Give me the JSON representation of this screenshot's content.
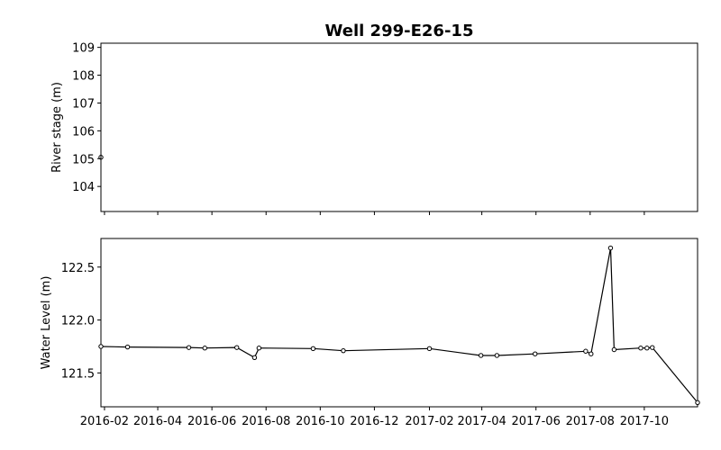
{
  "chart_data": [
    {
      "type": "line",
      "title": "Well 299-E26-15",
      "xlabel": "",
      "ylabel": "River stage (m)",
      "ylim": [
        103.1,
        109.15
      ],
      "yticks": [
        104,
        105,
        106,
        107,
        108,
        109
      ],
      "grid": false,
      "series": [
        {
          "x": [
            "2016-01-28"
          ],
          "y": [
            105.05
          ]
        }
      ]
    },
    {
      "type": "line",
      "xlabel": "",
      "ylabel": "Water Level (m)",
      "ylim": [
        121.18,
        122.77
      ],
      "yticks": [
        121.5,
        122.0,
        122.5
      ],
      "xlim": [
        "2016-01-28",
        "2017-11-30"
      ],
      "xticks": [
        "2016-02",
        "2016-04",
        "2016-06",
        "2016-08",
        "2016-10",
        "2016-12",
        "2017-02",
        "2017-04",
        "2017-06",
        "2017-08",
        "2017-10"
      ],
      "grid": false,
      "series": [
        {
          "marker": "circle",
          "x": [
            "2016-01-28",
            "2016-02-27",
            "2016-05-06",
            "2016-05-24",
            "2016-06-29",
            "2016-07-19",
            "2016-07-24",
            "2016-09-23",
            "2016-10-27",
            "2017-02-01",
            "2017-03-31",
            "2017-04-18",
            "2017-05-31",
            "2017-07-27",
            "2017-08-02",
            "2017-08-24",
            "2017-08-28",
            "2017-09-27",
            "2017-10-04",
            "2017-10-10",
            "2017-11-30"
          ],
          "y": [
            121.75,
            121.745,
            121.74,
            121.735,
            121.74,
            121.645,
            121.735,
            121.73,
            121.71,
            121.73,
            121.665,
            121.665,
            121.68,
            121.705,
            121.68,
            122.68,
            121.72,
            121.735,
            121.735,
            121.74,
            121.22
          ]
        }
      ]
    }
  ]
}
